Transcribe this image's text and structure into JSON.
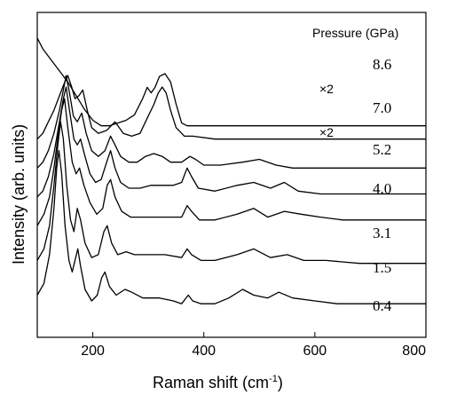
{
  "chart_data": {
    "type": "line",
    "title": "",
    "xlabel": "Raman shift (cm",
    "xlabel_sup": "-1",
    "xlabel_close": ")",
    "ylabel": "Intensity (arb. units)",
    "xlim": [
      100,
      800
    ],
    "ylim": [
      0,
      100
    ],
    "grid": false,
    "x_ticks": [
      200,
      400,
      600,
      800
    ],
    "x_tick_labels": [
      "200",
      "400",
      "600",
      "800"
    ],
    "legend_title": "Pressure (GPa)",
    "annotations": [
      "×2",
      "×2"
    ],
    "series": [
      {
        "name": "8.6",
        "offset": 80,
        "scale": 0.95,
        "points": [
          [
            100,
            100
          ],
          [
            110,
            96
          ],
          [
            125,
            92
          ],
          [
            140,
            88
          ],
          [
            155,
            84
          ],
          [
            170,
            79
          ],
          [
            185,
            74
          ],
          [
            200,
            70
          ],
          [
            215,
            68
          ],
          [
            230,
            68
          ],
          [
            245,
            69
          ],
          [
            260,
            70
          ],
          [
            275,
            72
          ],
          [
            290,
            78
          ],
          [
            298,
            82
          ],
          [
            305,
            80
          ],
          [
            312,
            82
          ],
          [
            320,
            86
          ],
          [
            330,
            87
          ],
          [
            340,
            84
          ],
          [
            350,
            76
          ],
          [
            360,
            69
          ],
          [
            370,
            68
          ],
          [
            390,
            68
          ],
          [
            420,
            68
          ],
          [
            460,
            68
          ],
          [
            500,
            68
          ],
          [
            560,
            68
          ],
          [
            620,
            68
          ],
          [
            700,
            68
          ],
          [
            800,
            68
          ]
        ]
      },
      {
        "name": "7.0",
        "offset": 56,
        "scale": 1,
        "points": [
          [
            100,
            60
          ],
          [
            110,
            62
          ],
          [
            120,
            66
          ],
          [
            130,
            70
          ],
          [
            140,
            75
          ],
          [
            148,
            79
          ],
          [
            155,
            82
          ],
          [
            162,
            78
          ],
          [
            168,
            74
          ],
          [
            175,
            75
          ],
          [
            182,
            77
          ],
          [
            190,
            70
          ],
          [
            198,
            64
          ],
          [
            210,
            62
          ],
          [
            225,
            63
          ],
          [
            240,
            66
          ],
          [
            255,
            62
          ],
          [
            270,
            61
          ],
          [
            285,
            62
          ],
          [
            300,
            68
          ],
          [
            310,
            72
          ],
          [
            318,
            76
          ],
          [
            325,
            78
          ],
          [
            332,
            76
          ],
          [
            340,
            70
          ],
          [
            350,
            64
          ],
          [
            365,
            61
          ],
          [
            380,
            61
          ],
          [
            420,
            60
          ],
          [
            480,
            60
          ],
          [
            560,
            60
          ],
          [
            640,
            60
          ],
          [
            720,
            60
          ],
          [
            800,
            60
          ]
        ]
      },
      {
        "name": "5.2",
        "offset": 42,
        "scale": 1,
        "points": [
          [
            100,
            50
          ],
          [
            110,
            52
          ],
          [
            120,
            56
          ],
          [
            130,
            62
          ],
          [
            140,
            70
          ],
          [
            148,
            78
          ],
          [
            152,
            82
          ],
          [
            158,
            76
          ],
          [
            165,
            68
          ],
          [
            172,
            66
          ],
          [
            180,
            69
          ],
          [
            188,
            62
          ],
          [
            198,
            56
          ],
          [
            210,
            54
          ],
          [
            222,
            56
          ],
          [
            232,
            61
          ],
          [
            240,
            58
          ],
          [
            250,
            54
          ],
          [
            265,
            52
          ],
          [
            280,
            52
          ],
          [
            295,
            54
          ],
          [
            310,
            55
          ],
          [
            325,
            54
          ],
          [
            340,
            52
          ],
          [
            360,
            52
          ],
          [
            375,
            54
          ],
          [
            385,
            53
          ],
          [
            400,
            51
          ],
          [
            430,
            51
          ],
          [
            470,
            52
          ],
          [
            500,
            53
          ],
          [
            530,
            51
          ],
          [
            560,
            50
          ],
          [
            600,
            50
          ],
          [
            660,
            50
          ],
          [
            720,
            50
          ],
          [
            800,
            50
          ]
        ]
      },
      {
        "name": "4.0",
        "offset": 32,
        "scale": 1,
        "points": [
          [
            100,
            40
          ],
          [
            110,
            42
          ],
          [
            120,
            47
          ],
          [
            130,
            55
          ],
          [
            140,
            66
          ],
          [
            147,
            74
          ],
          [
            152,
            78
          ],
          [
            158,
            70
          ],
          [
            166,
            60
          ],
          [
            172,
            58
          ],
          [
            178,
            60
          ],
          [
            186,
            54
          ],
          [
            195,
            48
          ],
          [
            205,
            45
          ],
          [
            215,
            46
          ],
          [
            225,
            52
          ],
          [
            232,
            56
          ],
          [
            240,
            50
          ],
          [
            250,
            45
          ],
          [
            265,
            43
          ],
          [
            285,
            43
          ],
          [
            305,
            44
          ],
          [
            325,
            44
          ],
          [
            345,
            44
          ],
          [
            360,
            45
          ],
          [
            370,
            50
          ],
          [
            378,
            47
          ],
          [
            390,
            43
          ],
          [
            420,
            42
          ],
          [
            460,
            44
          ],
          [
            490,
            45
          ],
          [
            520,
            43
          ],
          [
            545,
            45
          ],
          [
            570,
            42
          ],
          [
            610,
            41
          ],
          [
            660,
            41
          ],
          [
            720,
            41
          ],
          [
            800,
            41
          ]
        ]
      },
      {
        "name": "3.1",
        "offset": 22,
        "scale": 1,
        "points": [
          [
            100,
            30
          ],
          [
            112,
            34
          ],
          [
            122,
            40
          ],
          [
            130,
            50
          ],
          [
            138,
            62
          ],
          [
            144,
            70
          ],
          [
            149,
            74
          ],
          [
            155,
            64
          ],
          [
            163,
            52
          ],
          [
            170,
            48
          ],
          [
            176,
            50
          ],
          [
            184,
            44
          ],
          [
            195,
            38
          ],
          [
            207,
            34
          ],
          [
            218,
            36
          ],
          [
            226,
            44
          ],
          [
            232,
            46
          ],
          [
            240,
            40
          ],
          [
            252,
            35
          ],
          [
            268,
            33
          ],
          [
            290,
            33
          ],
          [
            320,
            33
          ],
          [
            345,
            33
          ],
          [
            360,
            33
          ],
          [
            370,
            37
          ],
          [
            378,
            35
          ],
          [
            392,
            32
          ],
          [
            420,
            32
          ],
          [
            460,
            34
          ],
          [
            490,
            36
          ],
          [
            515,
            33
          ],
          [
            545,
            35
          ],
          [
            575,
            34
          ],
          [
            610,
            33
          ],
          [
            650,
            32
          ],
          [
            700,
            32
          ],
          [
            800,
            32
          ]
        ]
      },
      {
        "name": "1.5",
        "offset": 12,
        "scale": 1,
        "points": [
          [
            100,
            18
          ],
          [
            112,
            22
          ],
          [
            122,
            30
          ],
          [
            130,
            44
          ],
          [
            137,
            58
          ],
          [
            142,
            66
          ],
          [
            147,
            60
          ],
          [
            153,
            44
          ],
          [
            160,
            32
          ],
          [
            166,
            28
          ],
          [
            172,
            36
          ],
          [
            178,
            32
          ],
          [
            186,
            24
          ],
          [
            198,
            19
          ],
          [
            210,
            20
          ],
          [
            220,
            28
          ],
          [
            226,
            30
          ],
          [
            234,
            24
          ],
          [
            245,
            20
          ],
          [
            260,
            21
          ],
          [
            275,
            20
          ],
          [
            300,
            20
          ],
          [
            330,
            20
          ],
          [
            360,
            19
          ],
          [
            370,
            22
          ],
          [
            378,
            20
          ],
          [
            395,
            18
          ],
          [
            420,
            18
          ],
          [
            460,
            20
          ],
          [
            490,
            22
          ],
          [
            520,
            19
          ],
          [
            550,
            20
          ],
          [
            580,
            18
          ],
          [
            620,
            18
          ],
          [
            680,
            17
          ],
          [
            740,
            17
          ],
          [
            800,
            17
          ]
        ]
      },
      {
        "name": "0.4",
        "offset": 0,
        "scale": 1,
        "points": [
          [
            100,
            6
          ],
          [
            112,
            10
          ],
          [
            122,
            20
          ],
          [
            130,
            36
          ],
          [
            135,
            50
          ],
          [
            139,
            56
          ],
          [
            144,
            48
          ],
          [
            150,
            30
          ],
          [
            157,
            18
          ],
          [
            163,
            14
          ],
          [
            168,
            18
          ],
          [
            173,
            22
          ],
          [
            178,
            16
          ],
          [
            186,
            8
          ],
          [
            198,
            4
          ],
          [
            208,
            6
          ],
          [
            216,
            12
          ],
          [
            222,
            14
          ],
          [
            230,
            9
          ],
          [
            242,
            6
          ],
          [
            258,
            8
          ],
          [
            270,
            7
          ],
          [
            290,
            5
          ],
          [
            320,
            5
          ],
          [
            345,
            4
          ],
          [
            360,
            3
          ],
          [
            372,
            6
          ],
          [
            380,
            4
          ],
          [
            395,
            3
          ],
          [
            420,
            3
          ],
          [
            445,
            5
          ],
          [
            470,
            8
          ],
          [
            490,
            6
          ],
          [
            515,
            5
          ],
          [
            535,
            7
          ],
          [
            560,
            5
          ],
          [
            600,
            4
          ],
          [
            640,
            3
          ],
          [
            700,
            3
          ],
          [
            800,
            3
          ]
        ]
      }
    ]
  }
}
